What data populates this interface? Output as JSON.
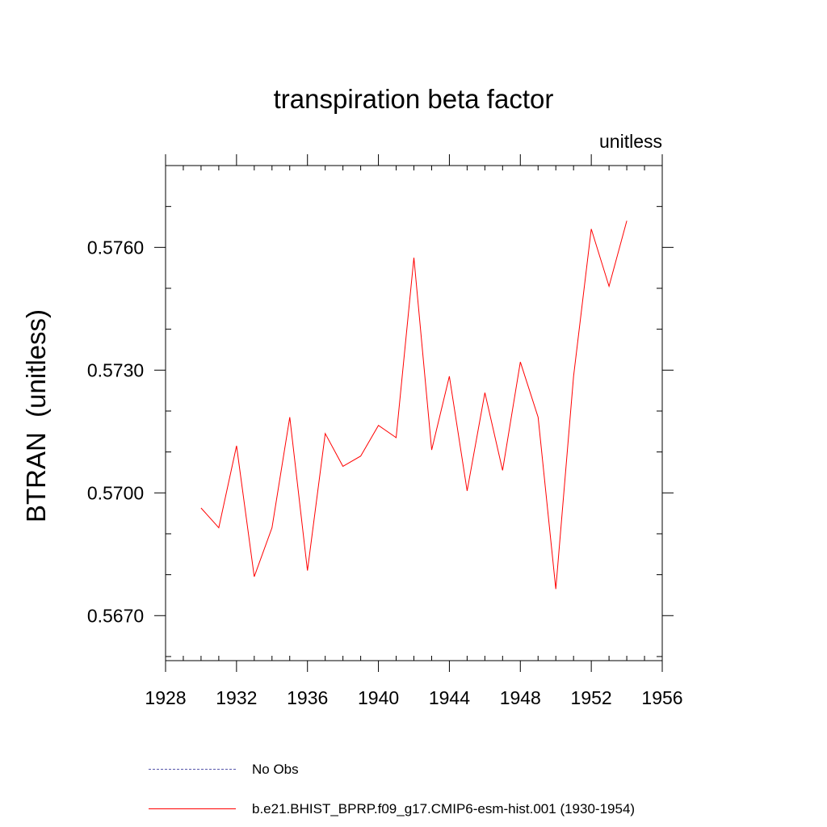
{
  "chart_data": {
    "type": "line",
    "title": "transpiration beta factor",
    "units_label": "unitless",
    "ylabel": "BTRAN  (unitless)",
    "xlabel": "",
    "xlim": [
      1928,
      1956
    ],
    "ylim": [
      0.5659,
      0.578
    ],
    "xticks": [
      1928,
      1932,
      1936,
      1940,
      1944,
      1948,
      1952,
      1956
    ],
    "xtick_labels": [
      "1928",
      "1932",
      "1936",
      "1940",
      "1944",
      "1948",
      "1952",
      "1956"
    ],
    "yticks": [
      0.567,
      0.57,
      0.573,
      0.576
    ],
    "ytick_labels": [
      "0.5670",
      "0.5700",
      "0.5730",
      "0.5760"
    ],
    "grid": false,
    "legend_position": "bottom",
    "series": [
      {
        "name": "b.e21.BHIST_BPRP.f09_g17.CMIP6-esm-hist.001 (1930-1954)",
        "color": "#ff0000",
        "style": "solid",
        "x": [
          1930,
          1931,
          1932,
          1933,
          1934,
          1935,
          1936,
          1937,
          1938,
          1939,
          1940,
          1941,
          1942,
          1943,
          1944,
          1945,
          1946,
          1947,
          1948,
          1949,
          1950,
          1951,
          1952,
          1953,
          1954
        ],
        "y": [
          0.56963,
          0.56915,
          0.57115,
          0.56795,
          0.56915,
          0.57185,
          0.5681,
          0.57145,
          0.57065,
          0.5709,
          0.57165,
          0.57135,
          0.57575,
          0.57105,
          0.57285,
          0.57005,
          0.57245,
          0.57055,
          0.5732,
          0.57185,
          0.56765,
          0.57285,
          0.57645,
          0.57505,
          0.57665
        ]
      }
    ],
    "legend": [
      {
        "label": "No Obs",
        "color": "#5555aa",
        "style": "dashed"
      },
      {
        "label": "b.e21.BHIST_BPRP.f09_g17.CMIP6-esm-hist.001 (1930-1954)",
        "color": "#ff0000",
        "style": "solid"
      }
    ]
  }
}
